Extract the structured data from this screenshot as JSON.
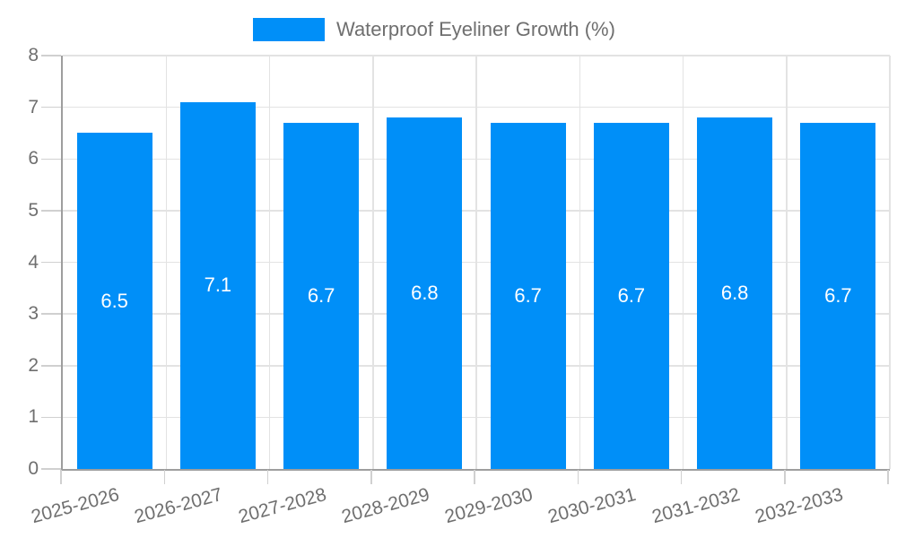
{
  "chart_data": {
    "type": "bar",
    "legend_label": "Waterproof Eyeliner Growth (%)",
    "legend_position": "top-center",
    "categories": [
      "2025-2026",
      "2026-2027",
      "2027-2028",
      "2028-2029",
      "2029-2030",
      "2030-2031",
      "2031-2032",
      "2032-2033"
    ],
    "series": [
      {
        "name": "Waterproof Eyeliner Growth (%)",
        "values": [
          6.5,
          7.1,
          6.7,
          6.8,
          6.7,
          6.7,
          6.8,
          6.7
        ]
      }
    ],
    "value_labels": [
      "6.5",
      "7.1",
      "6.7",
      "6.8",
      "6.7",
      "6.7",
      "6.8",
      "6.7"
    ],
    "xlabel": "",
    "ylabel": "",
    "ylim": [
      0,
      8
    ],
    "y_ticks": [
      0,
      1,
      2,
      3,
      4,
      5,
      6,
      7,
      8
    ],
    "grid": true,
    "x_label_rotation_deg": -15,
    "colors": {
      "bar": "#008ff8",
      "value_label": "#ffffff",
      "text": "#6f6f6f",
      "axis_line": "#9e9e9e",
      "grid_line": "#e3e3e3",
      "tick_line": "#d0d0d0",
      "background": "#ffffff"
    }
  }
}
